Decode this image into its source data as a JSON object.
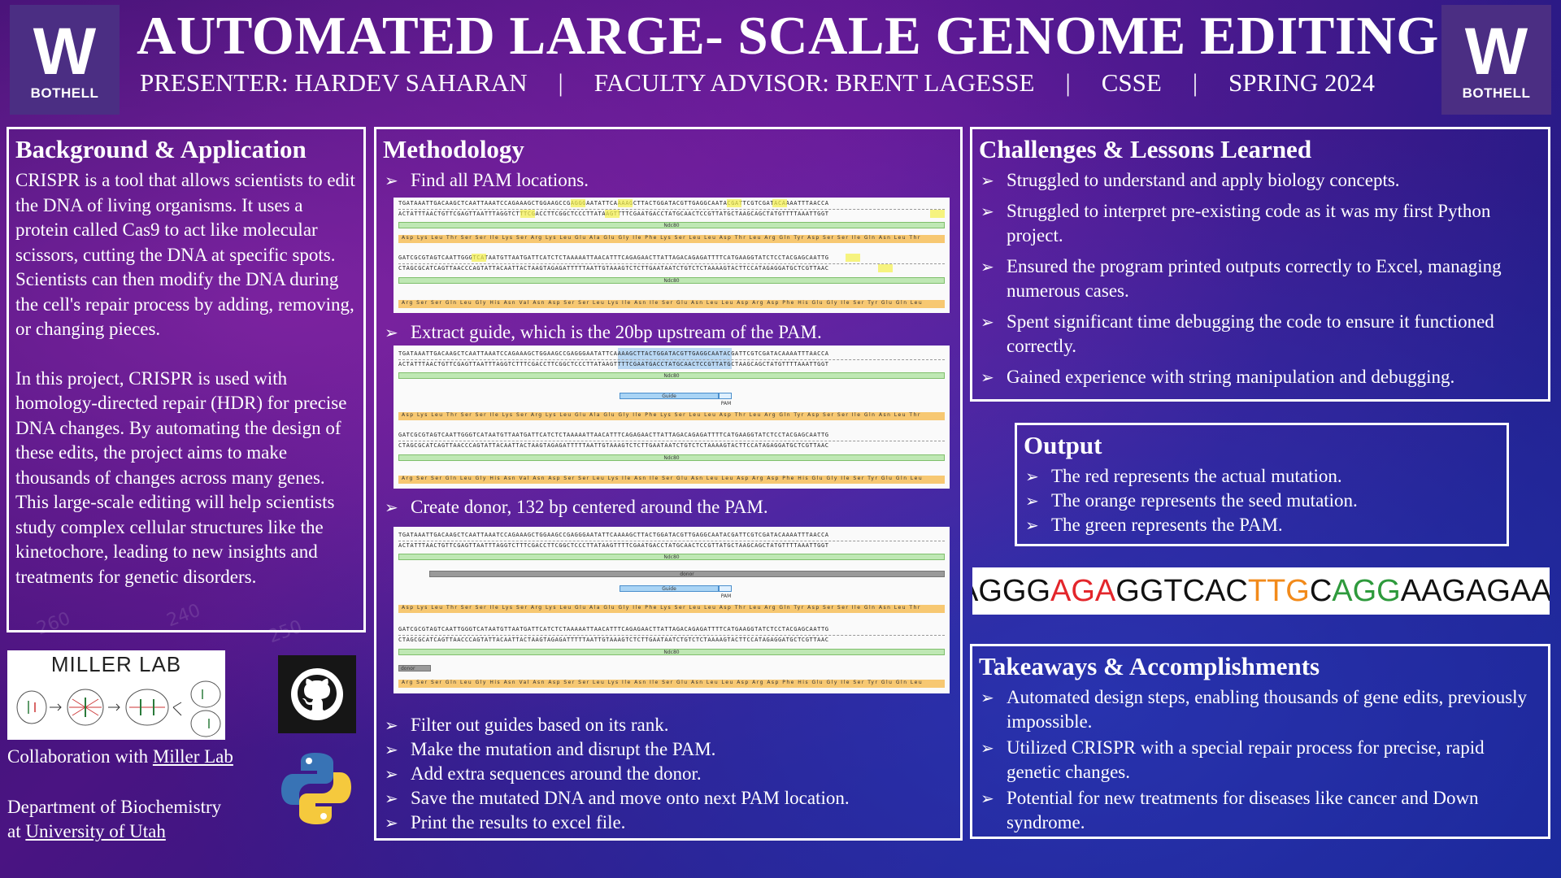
{
  "header": {
    "logo_w": "W",
    "logo_text": "BOTHELL",
    "title": "AUTOMATED LARGE- SCALE GENOME EDITING",
    "presenter": "PRESENTER: HARDEV SAHARAN",
    "advisor": "FACULTY ADVISOR: BRENT LAGESSE",
    "dept": "CSSE",
    "term": "SPRING 2024",
    "separator": "|"
  },
  "background": {
    "heading": "Background & Application",
    "para1": "CRISPR is a tool that allows scientists to edit the DNA of living organisms. It uses a protein called Cas9 to act like molecular scissors, cutting the DNA at specific spots. Scientists can then modify the DNA during the cell's repair process by adding, removing, or changing pieces.",
    "para2": "In this project, CRISPR is used with homology-directed repair (HDR) for precise DNA changes. By automating the design of these edits, the project aims to make thousands of changes across many genes. This large-scale editing will help scientists study complex cellular structures like the kinetochore, leading to new insights and treatments for genetic disorders."
  },
  "miller": {
    "title": "MILLER LAB",
    "collab_prefix": "Collaboration with ",
    "collab_link": "Miller Lab",
    "dept_line1": "Department of Biochemistry",
    "dept_prefix": "at ",
    "dept_link": "University of Utah"
  },
  "methodology": {
    "heading": "Methodology",
    "step1": "Find all PAM locations.",
    "step2": "Extract guide, which is the 20bp upstream of the PAM.",
    "step3": "Create donor, 132 bp centered around the PAM.",
    "steps_rest": [
      "Filter out guides based on its rank.",
      "Make the mutation and disrupt the PAM.",
      "Add extra sequences around the donor.",
      "Save the mutated DNA and move onto next PAM location.",
      "Print the results to excel file."
    ],
    "fig": {
      "seq_top": "TGATAAATTGACAAGCTCAATTAAATCCAGAAAGCTGGAAGCCGAGGGAATATTCAAAAGCTTACTGGATACGTTGAGGCAATACGATTCGTCGATACAAAATTTAACCA",
      "seq_bot": "ACTATTTAACTGTTCGAGTTAATTTAGGTCTTTCGACCTTCGGCTCCCTTATAAGTTTTCGAATGACCTATGCAACTCCGTTATGCTAAGCAGCTATGTTTTAAATTGGT",
      "seq_top2": "GATCGCGTAGTCAATTGGGTCATAATGTTAATGATTCATCTCTAAAAATTAACATTTCAGAGAACTTATTAGACAGAGATTTTCATGAAGGTATCTCCTACGAGCAATTG",
      "seq_bot2": "CTAGCGCATCAGTTAACCCAGTATTACAATTACTAAGTAGAGATTTTTAATTGTAAAGTCTCTTGAATAATCTGTCTCTAAAAGTACTTCCATAGAGGATGCTCGTTAAC",
      "aa_top": "Asp Lys Leu Thr Ser Ser Ile Lys Ser Arg Lys Leu Glu Ala Glu Gly Ile Phe Lys Ser Leu Leu Asp Thr Leu Arg Gln Tyr Asp Ser Ser Ile Gln Asn Leu Thr",
      "aa_bot": "Arg Ser Ser Gln Leu Gly His Asn Val Asn Asp Ser Ser Leu Lys Ile Asn Ile Ser Glu Asn Leu Leu Asp Arg Asp Phe His Glu Gly Ile Ser Tyr Glu Gln Leu",
      "ndc80": "Ndc80",
      "guide": "Guide",
      "pam": "PAM",
      "donor": "donor"
    }
  },
  "challenges": {
    "heading": "Challenges & Lessons Learned",
    "items": [
      "Struggled to understand and apply biology concepts.",
      "Struggled to interpret pre-existing code as it was my first Python project.",
      "Ensured the program printed outputs correctly to Excel, managing numerous cases.",
      "Spent significant time debugging the code to ensure it functioned correctly.",
      "Gained experience with string manipulation and debugging."
    ]
  },
  "output": {
    "heading": "Output",
    "items": [
      "The red represents the actual mutation.",
      "The orange represents the seed mutation.",
      "The green represents the PAM."
    ],
    "sequence": {
      "part1": "AGGG",
      "part2": "AGA",
      "part3": "GGTCAC",
      "part4": "TTG",
      "part5": "C",
      "part6": "AGG",
      "part7": "AAGAGAA"
    }
  },
  "takeaways": {
    "heading": "Takeaways & Accomplishments",
    "items": [
      "Automated design steps, enabling thousands of gene edits, previously impossible.",
      "Utilized CRISPR with a special repair process for precise, rapid genetic changes.",
      "Potential for new treatments for diseases like cancer and Down syndrome."
    ]
  },
  "colors": {
    "uw_purple": "#4b2e83",
    "mutation_red": "#e3262b",
    "seed_orange": "#f28a1a",
    "pam_green": "#2e9a3c"
  }
}
